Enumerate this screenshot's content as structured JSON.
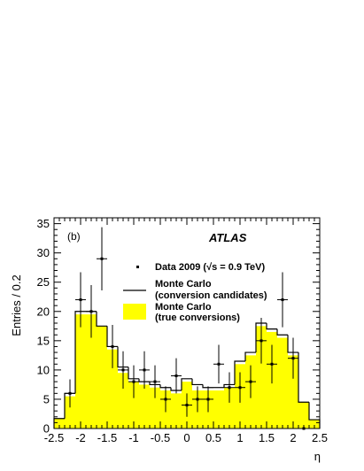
{
  "chart_data": {
    "type": "histogram",
    "panel_label": "(b)",
    "experiment_label": "ATLAS",
    "xlabel": "η",
    "ylabel": "Entries / 0.2",
    "xlim": [
      -2.5,
      2.5
    ],
    "ylim": [
      0,
      36
    ],
    "x_ticks": [
      -2.5,
      -2,
      -1.5,
      -1,
      -0.5,
      0,
      0.5,
      1,
      1.5,
      2,
      2.5
    ],
    "x_tick_labels": [
      "-2.5",
      "-2",
      "-1.5",
      "-1",
      "-0.5",
      "0",
      "0.5",
      "1",
      "1.5",
      "2",
      "2.5"
    ],
    "y_ticks": [
      0,
      5,
      10,
      15,
      20,
      25,
      30,
      35
    ],
    "y_tick_labels": [
      "0",
      "5",
      "10",
      "15",
      "20",
      "25",
      "30",
      "35"
    ],
    "bin_edges": [
      -2.5,
      -2.3,
      -2.1,
      -1.9,
      -1.7,
      -1.5,
      -1.3,
      -1.1,
      -0.9,
      -0.7,
      -0.5,
      -0.3,
      -0.1,
      0.1,
      0.3,
      0.5,
      0.7,
      0.9,
      1.1,
      1.3,
      1.5,
      1.7,
      1.9,
      2.1,
      2.3,
      2.5
    ],
    "series": [
      {
        "name": "Data 2009 (√s = 0.9 TeV)",
        "kind": "points",
        "x": [
          -2.2,
          -2.0,
          -1.8,
          -1.6,
          -1.4,
          -1.2,
          -1.0,
          -0.8,
          -0.6,
          -0.4,
          -0.2,
          0.0,
          0.2,
          0.4,
          0.6,
          0.8,
          1.0,
          1.2,
          1.4,
          1.6,
          1.8,
          2.0,
          2.2
        ],
        "values": [
          6,
          22,
          20,
          29,
          14,
          10,
          8,
          10,
          8,
          5,
          9,
          4,
          5,
          5,
          11,
          7,
          7,
          8,
          15,
          11,
          22,
          12,
          0
        ],
        "errors": [
          2.4,
          4.7,
          4.5,
          5.4,
          3.7,
          3.2,
          2.8,
          3.2,
          2.8,
          2.2,
          3.0,
          2.0,
          2.2,
          2.2,
          3.3,
          2.6,
          2.6,
          2.8,
          3.9,
          3.3,
          4.7,
          3.5,
          0
        ]
      },
      {
        "name": "Monte Carlo (conversion candidates)",
        "kind": "step",
        "values": [
          1.7,
          6,
          20,
          20,
          17.5,
          14,
          10.5,
          8.5,
          8,
          7.5,
          7,
          6.5,
          8.5,
          7.5,
          7,
          7,
          7.5,
          11.5,
          13,
          18,
          17,
          16,
          13,
          4.5,
          1.5
        ]
      },
      {
        "name": "Monte Carlo (true conversions)",
        "kind": "filled",
        "values": [
          1.7,
          5.5,
          19.5,
          19.5,
          17.5,
          13.5,
          9.5,
          8,
          7.5,
          7,
          6.5,
          6,
          8,
          6.5,
          6.5,
          6.5,
          7,
          11,
          12.5,
          17.5,
          16.5,
          15.5,
          12.5,
          4.5,
          1.5
        ]
      }
    ],
    "legend": {
      "placement": "top-right",
      "items": [
        {
          "kind": "marker",
          "line1": "Data 2009 (√s = 0.9 TeV)",
          "line2": ""
        },
        {
          "kind": "line",
          "line1": "Monte Carlo",
          "line2": "(conversion candidates)"
        },
        {
          "kind": "fill",
          "line1": "Monte Carlo",
          "line2": "(true conversions)"
        }
      ]
    },
    "colors": {
      "fill": "#ffff00",
      "line": "#000000",
      "marker": "#000000"
    },
    "grid": false
  }
}
